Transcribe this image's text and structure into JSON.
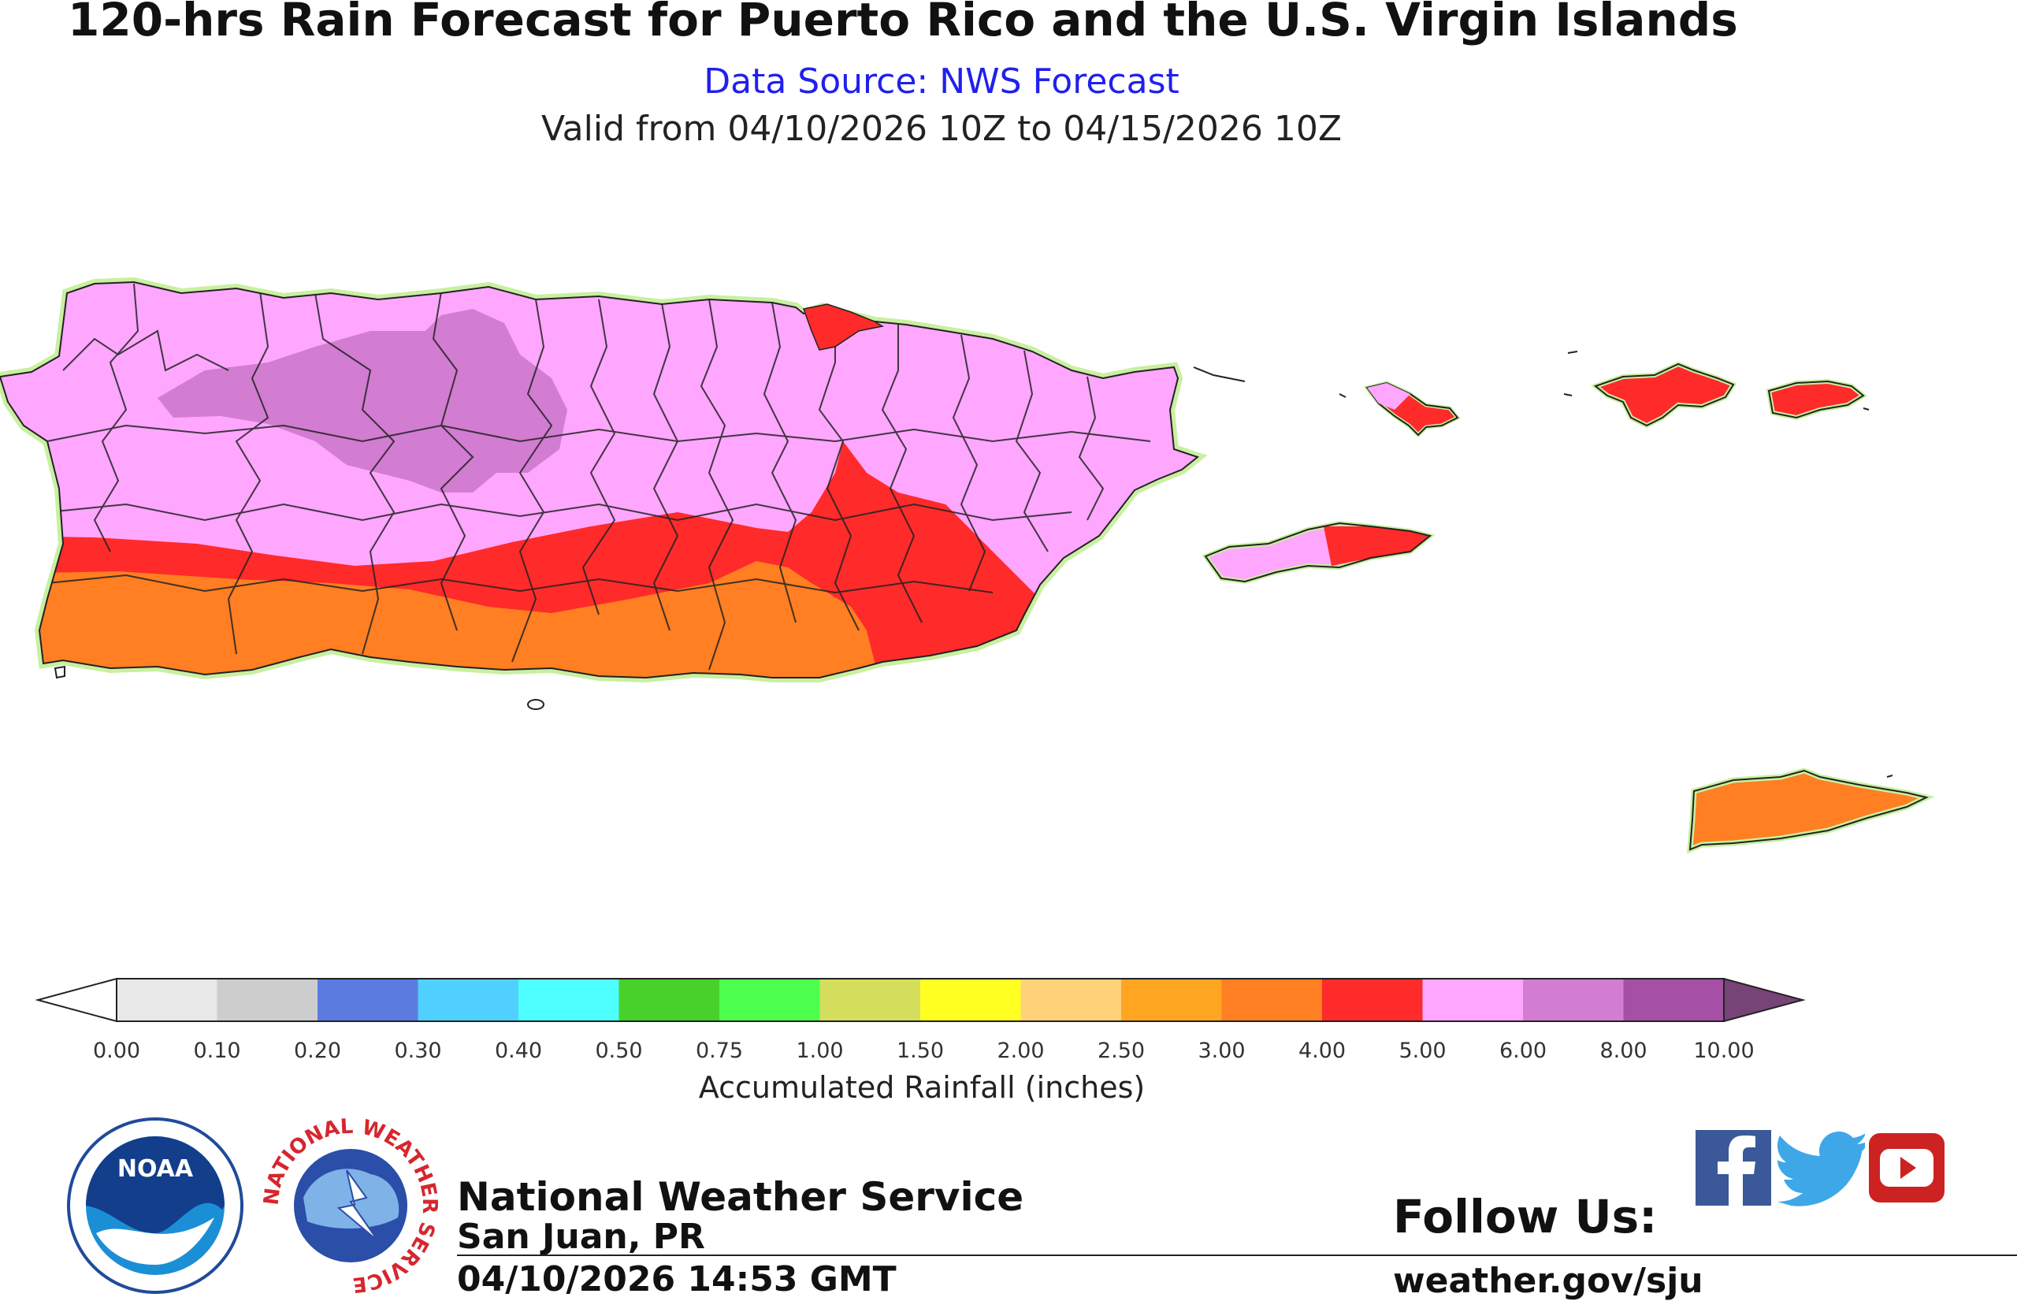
{
  "header": {
    "title": "120-hrs Rain Forecast for Puerto Rico and the U.S. Virgin Islands",
    "source": "Data Source: NWS Forecast",
    "valid": "Valid from 04/10/2026 10Z to 04/15/2026 10Z"
  },
  "legend": {
    "title": "Accumulated Rainfall (inches)",
    "ticks": [
      "0.00",
      "0.10",
      "0.20",
      "0.30",
      "0.40",
      "0.50",
      "0.75",
      "1.00",
      "1.50",
      "2.00",
      "2.50",
      "3.00",
      "4.00",
      "5.00",
      "6.00",
      "8.00",
      "10.00"
    ],
    "colors": [
      "#e8e8e8",
      "#cdcdcd",
      "#5b7be0",
      "#4fd0ff",
      "#4dffff",
      "#48d12a",
      "#4dff4d",
      "#d4de5c",
      "#ffff22",
      "#ffd27a",
      "#ffa522",
      "#ff7f22",
      "#ff2a2a",
      "#ffa6ff",
      "#d27cd2",
      "#a550a5"
    ],
    "under_color": "#ffffff",
    "over_color": "#774477"
  },
  "map_colors": {
    "pink": "#ffa6ff",
    "purple": "#d27cd2",
    "red": "#ff2a2a",
    "orange": "#ff7f22",
    "fringe": "#c8f0a0"
  },
  "footer": {
    "org": "National Weather Service",
    "office": "San Juan, PR",
    "timestamp": "04/10/2026 14:53 GMT",
    "follow": "Follow Us:",
    "website": "weather.gov/sju",
    "noaa_text": "NOAA",
    "nws_ring_text": "NATIONAL WEATHER SERVICE"
  },
  "social": [
    "facebook-icon",
    "twitter-icon",
    "youtube-icon"
  ]
}
